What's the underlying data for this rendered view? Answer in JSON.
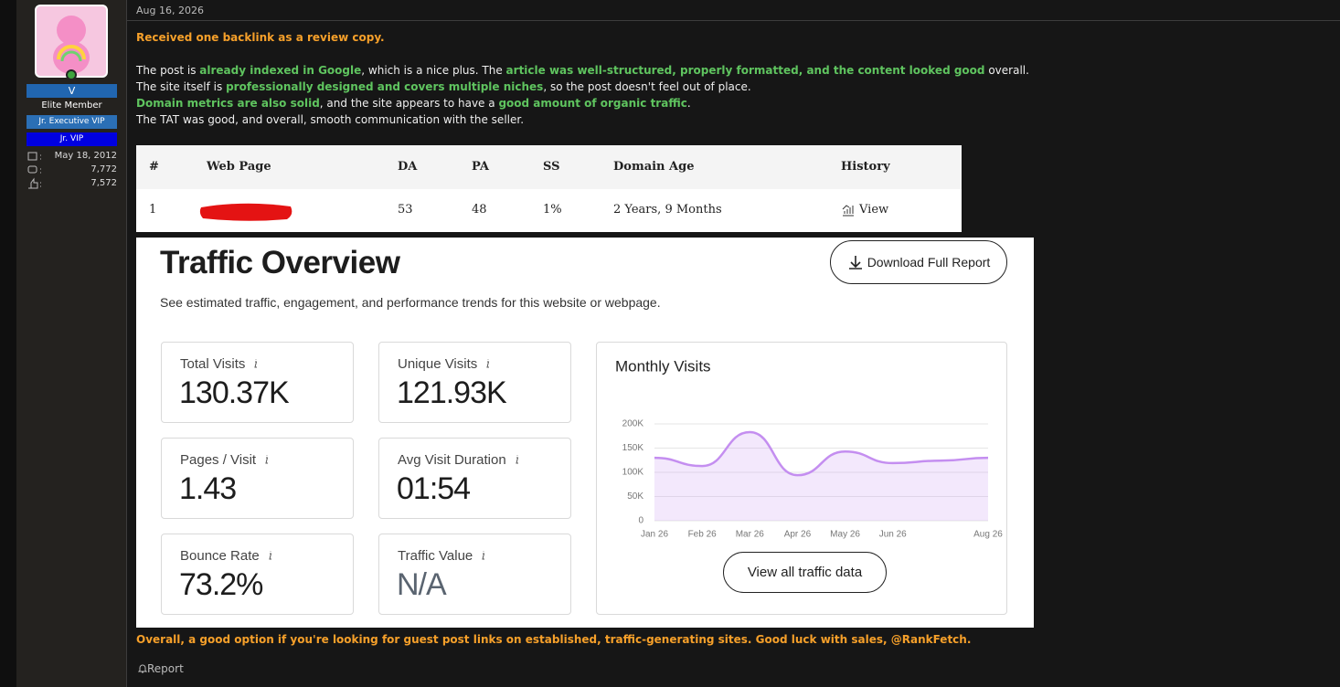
{
  "author": {
    "name": "V",
    "title": "Elite Member",
    "badges": [
      "Jr. Executive VIP",
      "Jr. VIP"
    ],
    "joined": "May 18, 2012",
    "messages": "7,772",
    "reactions": "7,572"
  },
  "post": {
    "date": "Aug 16, 2026",
    "intro": "Received one backlink as a review copy.",
    "lines": [
      [
        {
          "text": "The post is "
        },
        {
          "text": "already indexed in Google",
          "style": "green"
        },
        {
          "text": ", which is a nice plus. The "
        },
        {
          "text": "article was well-structured, properly formatted, and the content looked good",
          "style": "green"
        },
        {
          "text": " overall."
        }
      ],
      [
        {
          "text": "The site itself is "
        },
        {
          "text": "professionally designed and covers multiple niches",
          "style": "green"
        },
        {
          "text": ", so the post doesn't feel out of place."
        }
      ],
      [
        {
          "text": "Domain metrics are also solid",
          "style": "green"
        },
        {
          "text": ", and the site appears to have a "
        },
        {
          "text": "good amount of organic traffic",
          "style": "green"
        },
        {
          "text": "."
        }
      ],
      [
        {
          "text": "The TAT was good, and overall, smooth communication with the seller."
        }
      ]
    ],
    "closing": "Overall, a good option if you're looking for guest post links on established, traffic-generating sites. Good luck with sales, @RankFetch.",
    "report": "Report"
  },
  "table": {
    "headers": [
      "#",
      "Web Page",
      "DA",
      "PA",
      "SS",
      "Domain Age",
      "History"
    ],
    "row": {
      "index": "1",
      "da": "53",
      "pa": "48",
      "ss": "1%",
      "age": "2 Years, 9 Months",
      "history": "View"
    }
  },
  "traffic": {
    "title": "Traffic Overview",
    "subtitle": "See estimated traffic, engagement, and performance trends for this website or webpage.",
    "download": "Download Full Report",
    "metrics": [
      {
        "label": "Total Visits",
        "value": "130.37K"
      },
      {
        "label": "Unique Visits",
        "value": "121.93K"
      },
      {
        "label": "Pages / Visit",
        "value": "1.43"
      },
      {
        "label": "Avg Visit Duration",
        "value": "01:54"
      },
      {
        "label": "Bounce Rate",
        "value": "73.2%"
      },
      {
        "label": "Traffic Value",
        "value": "N/A"
      }
    ],
    "view_all": "View all traffic data"
  },
  "chart_data": {
    "type": "area",
    "title": "Monthly Visits",
    "categories": [
      "Jan 26",
      "Feb 26",
      "Mar 26",
      "Apr 26",
      "May 26",
      "Jun 26",
      null,
      "Aug 26"
    ],
    "values": [
      130000,
      113000,
      183000,
      94000,
      143000,
      119000,
      124000,
      130000
    ],
    "color": "#c48ef0",
    "ylim": [
      0,
      200000
    ],
    "yticks": [
      0,
      {
        "value": 50000,
        "label": "50K"
      },
      {
        "value": 100000,
        "label": "100K"
      },
      {
        "value": 150000,
        "label": "150K"
      },
      {
        "value": 200000,
        "label": "200K"
      }
    ],
    "grid": true
  }
}
